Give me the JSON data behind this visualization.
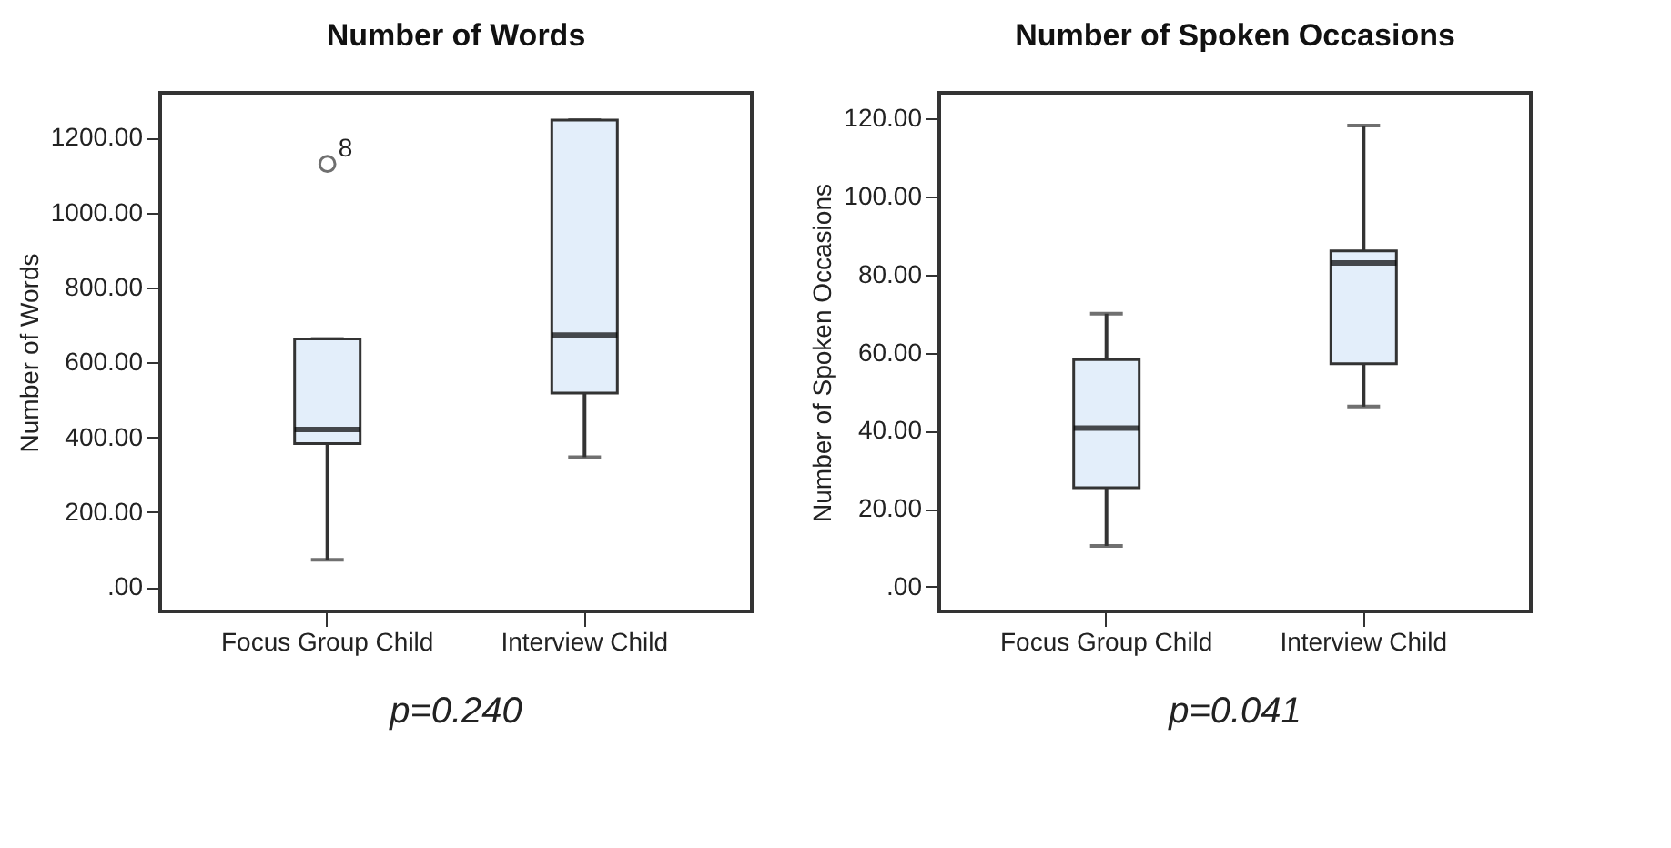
{
  "chart_data": [
    {
      "type": "box",
      "title": "Number of Words",
      "ylabel": "Number of Words",
      "categories": [
        "Focus Group Child",
        "Interview Child"
      ],
      "color": "#e3eefa",
      "boxes": [
        {
          "low": 73,
          "q1": 383,
          "median": 421,
          "q3": 663,
          "high": 663,
          "outliers": [
            1130
          ]
        },
        {
          "low": 347,
          "q1": 518,
          "median": 673,
          "q3": 1247,
          "high": 1247
        }
      ],
      "ylim": [
        -65,
        1320
      ],
      "yticks": [
        {
          "value": 0,
          "label": ".00"
        },
        {
          "value": 200,
          "label": "200.00"
        },
        {
          "value": 400,
          "label": "400.00"
        },
        {
          "value": 600,
          "label": "600.00"
        },
        {
          "value": 800,
          "label": "800.00"
        },
        {
          "value": 1000,
          "label": "1000.00"
        },
        {
          "value": 1200,
          "label": "1200.00"
        }
      ],
      "annotations": [
        "8",
        "p=0.240"
      ]
    },
    {
      "type": "box",
      "title": "Number of Spoken Occasions",
      "ylabel": "Number of Spoken Occasions",
      "categories": [
        "Focus Group Child",
        "Interview Child"
      ],
      "color": "#e3eefa",
      "boxes": [
        {
          "low": 10.5,
          "q1": 25.4,
          "median": 40.7,
          "q3": 58.2,
          "high": 70
        },
        {
          "low": 46.2,
          "q1": 57.2,
          "median": 83,
          "q3": 86.1,
          "high": 118.2
        }
      ],
      "ylim": [
        -6.3,
        126.6
      ],
      "yticks": [
        {
          "value": 0,
          "label": ".00"
        },
        {
          "value": 20,
          "label": "20.00"
        },
        {
          "value": 40,
          "label": "40.00"
        },
        {
          "value": 60,
          "label": "60.00"
        },
        {
          "value": 80,
          "label": "80.00"
        },
        {
          "value": 100,
          "label": "100.00"
        },
        {
          "value": 120,
          "label": "120.00"
        }
      ],
      "annotations": [
        "p=0.041"
      ]
    }
  ]
}
